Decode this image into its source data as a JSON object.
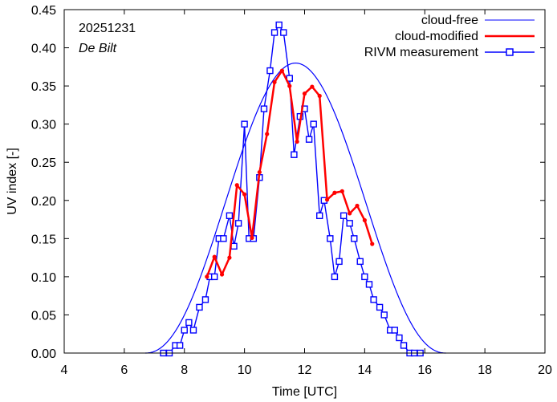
{
  "chart_data": {
    "type": "line",
    "title": "",
    "date_label": "20251231",
    "location_label": "De Bilt",
    "xlabel": "Time  [UTC]",
    "ylabel": "UV index  [-]",
    "xlim": [
      4,
      20
    ],
    "ylim": [
      0,
      0.45
    ],
    "xticks": [
      4,
      6,
      8,
      10,
      12,
      14,
      16,
      18,
      20
    ],
    "yticks": [
      0.0,
      0.05,
      0.1,
      0.15,
      0.2,
      0.25,
      0.3,
      0.35,
      0.4,
      0.45
    ],
    "ytick_labels": [
      "0.00",
      "0.05",
      "0.10",
      "0.15",
      "0.20",
      "0.25",
      "0.30",
      "0.35",
      "0.40",
      "0.45"
    ],
    "xtick_labels": [
      "4",
      "6",
      "8",
      "10",
      "12",
      "14",
      "16",
      "18",
      "20"
    ],
    "legend_position": "top-right",
    "series": [
      {
        "name": "cloud-free",
        "color": "#0000ff",
        "style": "line",
        "peak_x": 11.7,
        "peak_y": 0.38,
        "start_x": 6.7,
        "end_x": 16.7
      },
      {
        "name": "cloud-modified",
        "color": "#ff0000",
        "style": "line-dot",
        "x": [
          8.75,
          9.0,
          9.25,
          9.5,
          9.75,
          10.0,
          10.25,
          10.5,
          10.75,
          11.0,
          11.25,
          11.5,
          11.75,
          12.0,
          12.25,
          12.5,
          12.75,
          13.0,
          13.25,
          13.5,
          13.75,
          14.0,
          14.25
        ],
        "y": [
          0.1,
          0.126,
          0.103,
          0.125,
          0.22,
          0.208,
          0.151,
          0.237,
          0.287,
          0.355,
          0.37,
          0.35,
          0.277,
          0.34,
          0.349,
          0.337,
          0.201,
          0.21,
          0.212,
          0.183,
          0.193,
          0.174,
          0.143
        ]
      },
      {
        "name": "RIVM measurement",
        "color": "#0000ff",
        "style": "line-square",
        "x": [
          7.3,
          7.5,
          7.7,
          7.85,
          8.0,
          8.15,
          8.3,
          8.5,
          8.7,
          8.85,
          9.0,
          9.15,
          9.3,
          9.5,
          9.65,
          9.8,
          10.0,
          10.15,
          10.3,
          10.5,
          10.65,
          10.85,
          11.0,
          11.15,
          11.3,
          11.5,
          11.65,
          11.85,
          12.0,
          12.15,
          12.3,
          12.5,
          12.65,
          12.85,
          13.0,
          13.15,
          13.3,
          13.5,
          13.65,
          13.85,
          14.0,
          14.15,
          14.3,
          14.5,
          14.65,
          14.85,
          15.0,
          15.15,
          15.3,
          15.5,
          15.65,
          15.85
        ],
        "y": [
          0.0,
          0.0,
          0.01,
          0.01,
          0.03,
          0.04,
          0.03,
          0.06,
          0.07,
          0.1,
          0.1,
          0.15,
          0.15,
          0.18,
          0.14,
          0.17,
          0.3,
          0.15,
          0.15,
          0.23,
          0.32,
          0.37,
          0.42,
          0.43,
          0.42,
          0.36,
          0.26,
          0.31,
          0.32,
          0.28,
          0.3,
          0.18,
          0.2,
          0.15,
          0.1,
          0.12,
          0.18,
          0.17,
          0.15,
          0.12,
          0.1,
          0.09,
          0.07,
          0.06,
          0.05,
          0.03,
          0.03,
          0.02,
          0.01,
          0.0,
          0.0,
          0.0
        ]
      }
    ]
  }
}
